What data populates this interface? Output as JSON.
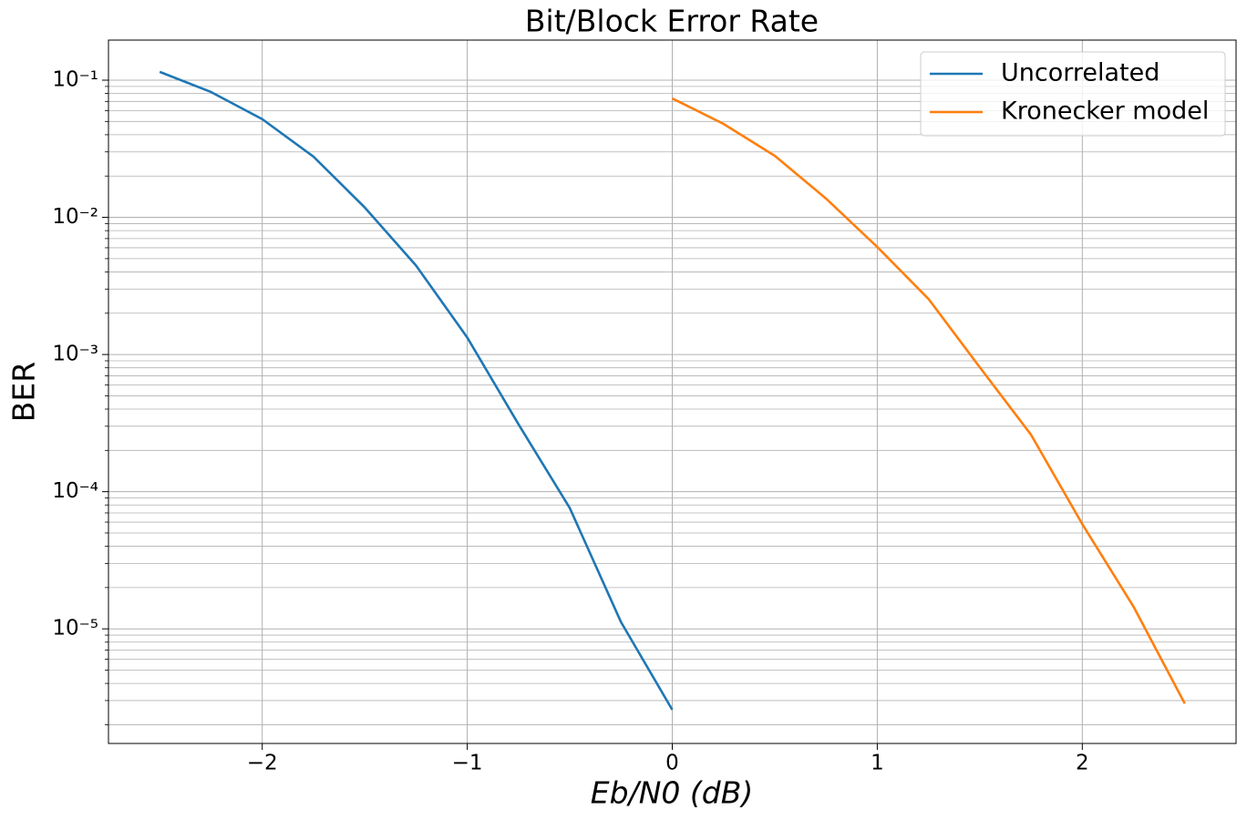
{
  "chart_data": {
    "type": "line",
    "title": "Bit/Block Error Rate",
    "xlabel": "Eb/N0 (dB)",
    "ylabel": "BER",
    "x": [
      -2.5,
      -2.25,
      -2.0,
      -1.75,
      -1.5,
      -1.25,
      -1.0,
      -0.75,
      -0.5,
      -0.25,
      0.0,
      0.25,
      0.5,
      0.75,
      1.0,
      1.25,
      1.5,
      1.75,
      2.0,
      2.25,
      2.5
    ],
    "series": [
      {
        "name": "Uncorrelated",
        "color": "#1f77b4",
        "values": [
          0.115,
          0.082,
          0.052,
          0.0277,
          0.0118,
          0.00446,
          0.00133,
          0.00031,
          7.6e-05,
          1.12e-05,
          2.57e-06,
          null,
          null,
          null,
          null,
          null,
          null,
          null,
          null,
          null,
          null
        ]
      },
      {
        "name": "Kronecker model",
        "color": "#ff7f0e",
        "values": [
          null,
          null,
          null,
          null,
          null,
          null,
          null,
          null,
          null,
          null,
          0.0736,
          0.048,
          0.0281,
          0.0137,
          0.00608,
          0.00254,
          0.000807,
          0.00026,
          5.8e-05,
          1.45e-05,
          2.85e-06
        ]
      }
    ],
    "xlim": [
      -2.75,
      2.75
    ],
    "xticks": [
      {
        "value": -2,
        "label": "−2"
      },
      {
        "value": -1,
        "label": "−1"
      },
      0,
      1,
      2
    ],
    "ylim": [
      0.196,
      1.46e-06
    ],
    "ylog": true,
    "yticks": [
      {
        "value": 0.1,
        "label": "10⁻¹"
      },
      {
        "value": 0.01,
        "label": "10⁻²"
      },
      {
        "value": 0.001,
        "label": "10⁻³"
      },
      {
        "value": 0.0001,
        "label": "10⁻⁴"
      },
      {
        "value": 1e-05,
        "label": "10⁻⁵"
      }
    ],
    "grid": true,
    "minor_grid": true,
    "legend": "upper right"
  }
}
